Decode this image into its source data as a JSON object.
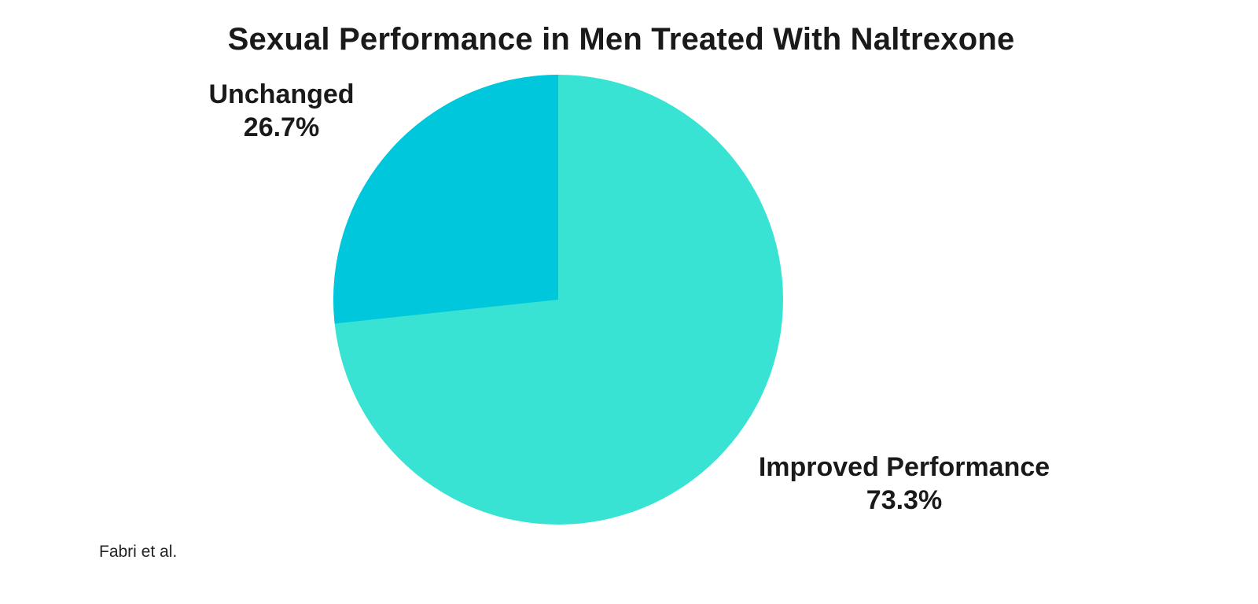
{
  "title": "Sexual Performance in Men Treated With Naltrexone",
  "source": "Fabri et al.",
  "colors": {
    "improved": "#39E3D3",
    "unchanged": "#00C7DC",
    "text": "#1A1A1A",
    "background": "#FFFFFF"
  },
  "chart_data": {
    "type": "pie",
    "title": "Sexual Performance in Men Treated With Naltrexone",
    "slices": [
      {
        "label": "Improved Performance",
        "value": 73.3,
        "pct_text": "73.3%",
        "color": "#39E3D3"
      },
      {
        "label": "Unchanged",
        "value": 26.7,
        "pct_text": "26.7%",
        "color": "#00C7DC"
      }
    ],
    "start_angle": "12 o'clock",
    "minor_slice_direction": "counterclockwise",
    "legend": "none",
    "labels_position": "outside",
    "source_annotation": "Fabri et al."
  }
}
